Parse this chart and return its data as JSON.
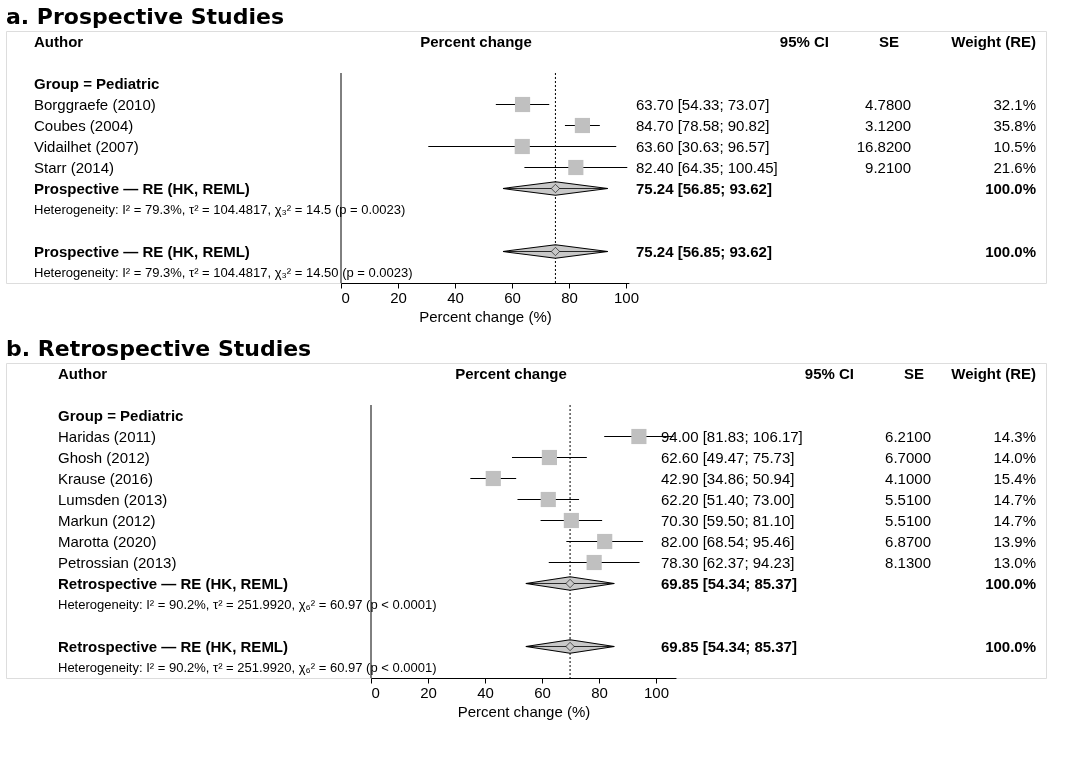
{
  "chart_data": [
    {
      "type": "scatter",
      "orientation": "horizontal",
      "title": "a. Prospective Studies",
      "xlabel": "Percent change (%)",
      "categories": [
        "Borggraefe (2010)",
        "Coubes (2004)",
        "Vidailhet (2007)",
        "Starr (2014)",
        "Prospective — RE (HK, REML)",
        "Prospective — RE (HK, REML)"
      ],
      "series": [
        {
          "marker": "square",
          "color": "#c0c0c0",
          "values": [
            63.7,
            84.7,
            63.6,
            82.4,
            null,
            null
          ],
          "errors": [
            [
              54.33,
              73.07
            ],
            [
              78.58,
              90.82
            ],
            [
              30.63,
              96.57
            ],
            [
              64.35,
              100.45
            ],
            null,
            null
          ]
        },
        {
          "marker": "diamond",
          "color": "#c8c8c8",
          "values": [
            null,
            null,
            null,
            null,
            75.24,
            75.24
          ],
          "errors": [
            null,
            null,
            null,
            null,
            [
              56.85,
              93.62
            ],
            [
              56.85,
              93.62
            ]
          ]
        }
      ],
      "value_labels": [
        "63.70 [54.33; 73.07]",
        "84.70 [78.58; 90.82]",
        "63.60 [30.63; 96.57]",
        "82.40 [64.35; 100.45]",
        "75.24 [56.85;  93.62]",
        "75.24 [56.85;  93.62]"
      ],
      "xlim": [
        0,
        101
      ],
      "xticks": [
        0,
        20,
        40,
        60,
        80,
        100
      ],
      "ref_lines": [
        {
          "axis": "x",
          "value": 0,
          "line_style": "solid"
        },
        {
          "axis": "x",
          "value": 75.24,
          "line_style": "dotted"
        }
      ],
      "annotations": [
        "Author",
        "Percent change",
        "95% CI",
        "SE",
        "Weight (RE)",
        "Group = Pediatric",
        "4.7800",
        "3.1200",
        "16.8200",
        "9.2100",
        "32.1%",
        "35.8%",
        "10.5%",
        "21.6%",
        "100.0%",
        "Heterogeneity: I² = 79.3%, τ² = 104.4817, χ₃² = 14.5 (p = 0.0023)",
        "100.0%",
        "Heterogeneity: I² = 79.3%, τ² = 104.4817, χ₃² = 14.50 (p = 0.0023)"
      ]
    },
    {
      "type": "scatter",
      "orientation": "horizontal",
      "title": "b. Retrospective Studies",
      "xlabel": "Percent change (%)",
      "categories": [
        "Haridas (2011)",
        "Ghosh (2012)",
        "Krause (2016)",
        "Lumsden (2013)",
        "Markun (2012)",
        "Marotta (2020)",
        "Petrossian (2013)",
        "Retrospective — RE (HK, REML)",
        "Retrospective — RE (HK, REML)"
      ],
      "series": [
        {
          "marker": "square",
          "color": "#c0c0c0",
          "values": [
            94.0,
            62.6,
            42.9,
            62.2,
            70.3,
            82.0,
            78.3,
            null,
            null
          ],
          "errors": [
            [
              81.83,
              106.17
            ],
            [
              49.47,
              75.73
            ],
            [
              34.86,
              50.94
            ],
            [
              51.4,
              73.0
            ],
            [
              59.5,
              81.1
            ],
            [
              68.54,
              95.46
            ],
            [
              62.37,
              94.23
            ],
            null,
            null
          ]
        },
        {
          "marker": "diamond",
          "color": "#c8c8c8",
          "values": [
            null,
            null,
            null,
            null,
            null,
            null,
            null,
            69.85,
            69.85
          ],
          "errors": [
            null,
            null,
            null,
            null,
            null,
            null,
            null,
            [
              54.34,
              85.37
            ],
            [
              54.34,
              85.37
            ]
          ]
        }
      ],
      "value_labels": [
        "94.00 [81.83; 106.17]",
        "62.60 [49.47;  75.73]",
        "42.90 [34.86;  50.94]",
        "62.20 [51.40;  73.00]",
        "70.30 [59.50;  81.10]",
        "82.00 [68.54;  95.46]",
        "78.30 [62.37;  94.23]",
        "69.85 [54.34;  85.37]",
        "69.85 [54.34;  85.37]"
      ],
      "xlim": [
        0,
        107
      ],
      "xticks": [
        0,
        20,
        40,
        60,
        80,
        100
      ],
      "ref_lines": [
        {
          "axis": "x",
          "value": 0,
          "line_style": "solid"
        },
        {
          "axis": "x",
          "value": 69.85,
          "line_style": "dotted"
        }
      ],
      "annotations": [
        "Author",
        "Percent change",
        "95% CI",
        "SE",
        "Weight (RE)",
        "Group = Pediatric",
        "6.2100",
        "6.7000",
        "4.1000",
        "5.5100",
        "5.5100",
        "6.8700",
        "8.1300",
        "14.3%",
        "14.0%",
        "15.4%",
        "14.7%",
        "14.7%",
        "13.9%",
        "13.0%",
        "100.0%",
        "Heterogeneity: I² = 90.2%, τ² = 251.9920, χ₆² = 60.97 (p < 0.0001)",
        "100.0%",
        "Heterogeneity: I² = 90.2%, τ² = 251.9920, χ₆² = 60.97 (p < 0.0001)"
      ]
    }
  ]
}
